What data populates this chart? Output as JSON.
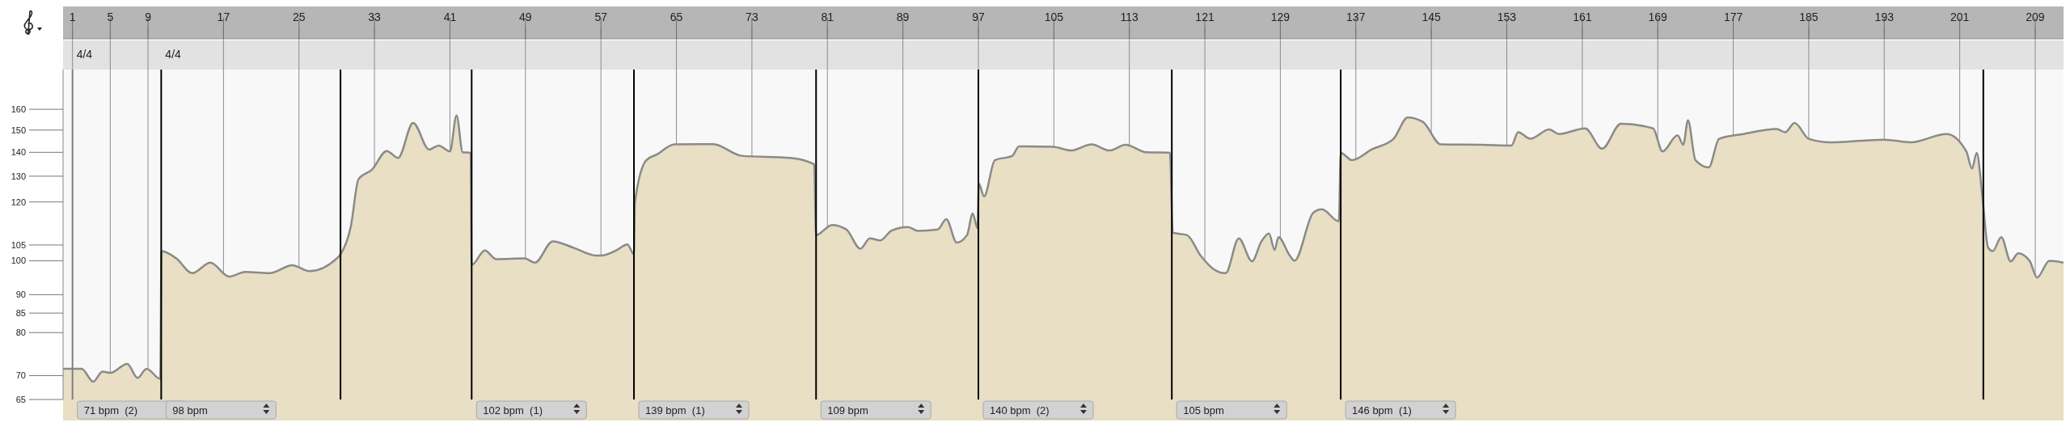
{
  "chart_data": {
    "type": "area",
    "log": "y",
    "xlim": [
      0,
      212
    ],
    "ylim": [
      65,
      181
    ],
    "xticks": [
      1,
      5,
      9,
      17,
      25,
      33,
      41,
      49,
      57,
      65,
      73,
      81,
      89,
      97,
      105,
      113,
      121,
      129,
      137,
      145,
      153,
      161,
      169,
      177,
      185,
      193,
      201,
      209
    ],
    "yticks": [
      65,
      70,
      80,
      85,
      90,
      100,
      105,
      120,
      130,
      140,
      150,
      160
    ],
    "grid": "x",
    "series": [
      {
        "color": "#e8dfc4",
        "x": [
          0,
          1.96,
          3.2,
          4.17,
          5,
          6.8,
          7.9,
          8.85,
          10.3,
          10.43,
          12,
          13.7,
          15.6,
          17.6,
          19.3,
          21.9,
          24.3,
          26.1,
          29,
          29.4,
          30.5,
          31.3,
          32.75,
          34.3,
          35.5,
          37.1,
          38.8,
          39.8,
          41,
          41.7,
          42.35,
          43.2,
          43.3,
          44.7,
          45.9,
          48.9,
          50,
          51.9,
          54.1,
          56.5,
          57,
          58.7,
          59.8,
          60.5,
          60.6,
          61.8,
          62.9,
          64.8,
          68.9,
          71.9,
          77.05,
          79.6,
          79.8,
          81.5,
          83,
          84.5,
          85.5,
          86.6,
          87.8,
          89.55,
          90.6,
          92.7,
          93.6,
          94.7,
          95.8,
          96.4,
          96.9,
          97.05,
          97.6,
          98.75,
          100.6,
          101.3,
          104.9,
          106.8,
          109,
          110.9,
          112.6,
          114.8,
          117.3,
          117.6,
          119.1,
          120.6,
          121.8,
          123.2,
          124.6,
          126,
          127,
          127.8,
          128.4,
          128.8,
          130,
          130.5,
          132.5,
          133.4,
          135.2,
          135.4,
          136.6,
          138.7,
          141,
          142.5,
          144.1,
          146,
          150.4,
          153.5,
          154.2,
          155.5,
          157.5,
          158.5,
          161.3,
          163.1,
          165.1,
          168.5,
          169.5,
          171.1,
          171.7,
          172.2,
          173,
          174.4,
          175.5,
          178.1,
          181.6,
          182.5,
          183.5,
          185,
          187.3,
          193,
          195.8,
          199.6,
          201.7,
          202.3,
          202.8,
          203.4,
          204,
          204.5,
          205.4,
          206.4,
          207.2,
          208.4,
          209.2,
          210.5,
          212
        ],
        "values": [
          71.5,
          71.5,
          68.7,
          70.9,
          70.6,
          72.6,
          69.5,
          71.5,
          69.3,
          103,
          100.7,
          96.2,
          99.4,
          95.2,
          96.6,
          96.2,
          98.6,
          96.8,
          100.7,
          102,
          111.3,
          128.7,
          132.7,
          140.6,
          137.6,
          153.4,
          141.2,
          143,
          140.4,
          157,
          140,
          139.8,
          98.7,
          103.2,
          100.5,
          100.7,
          99.4,
          106.2,
          104.1,
          101.6,
          101.6,
          103.4,
          105.2,
          102,
          119.7,
          136.6,
          139,
          143.5,
          143.6,
          138.5,
          137.6,
          134.9,
          108.3,
          111.7,
          110.2,
          103.8,
          107.2,
          106.5,
          109.8,
          111,
          109.7,
          110.2,
          113.8,
          105.8,
          108.3,
          115.8,
          110.6,
          127.1,
          122.1,
          136.6,
          138.5,
          142.6,
          142.4,
          140.8,
          143.5,
          140.8,
          143.3,
          140,
          139.8,
          109.1,
          108.3,
          101.4,
          97.7,
          96.2,
          107.2,
          99.8,
          106.2,
          108.8,
          103.4,
          107.6,
          101.6,
          100,
          116.1,
          117.3,
          113,
          139.8,
          136.6,
          141.3,
          146,
          156,
          153.9,
          143.5,
          143.3,
          143,
          149,
          146,
          150.3,
          148.2,
          150.8,
          141.6,
          153,
          150.8,
          140.4,
          147.6,
          143.3,
          154.6,
          136.6,
          133.6,
          146,
          148.2,
          150.5,
          149,
          153.4,
          146,
          144.4,
          145.6,
          144.4,
          148.2,
          140.4,
          133.1,
          139.8,
          122.1,
          104.2,
          103,
          107.6,
          99.8,
          102.3,
          100,
          94.9,
          100,
          99.4
        ]
      }
    ],
    "ref_lines": [
      {
        "axis": "x",
        "value": 1,
        "color": "#808080",
        "label": "71 bpm  (2)"
      },
      {
        "axis": "x",
        "value": 10.4,
        "color": "#000000",
        "label": "98 bpm"
      },
      {
        "axis": "x",
        "value": 29.4,
        "color": "#000000"
      },
      {
        "axis": "x",
        "value": 43.3,
        "color": "#000000",
        "label": "102 bpm  (1)"
      },
      {
        "axis": "x",
        "value": 60.5,
        "color": "#000000",
        "label": "139 bpm  (1)"
      },
      {
        "axis": "x",
        "value": 79.8,
        "color": "#000000",
        "label": "109 bpm"
      },
      {
        "axis": "x",
        "value": 97,
        "color": "#000000",
        "label": "140 bpm  (2)"
      },
      {
        "axis": "x",
        "value": 117.5,
        "color": "#000000",
        "label": "105 bpm"
      },
      {
        "axis": "x",
        "value": 135.4,
        "color": "#000000",
        "label": "146 bpm  (1)"
      },
      {
        "axis": "x",
        "value": 203.5,
        "color": "#000000"
      }
    ],
    "annotations": [
      "4/4",
      "4/4"
    ]
  }
}
